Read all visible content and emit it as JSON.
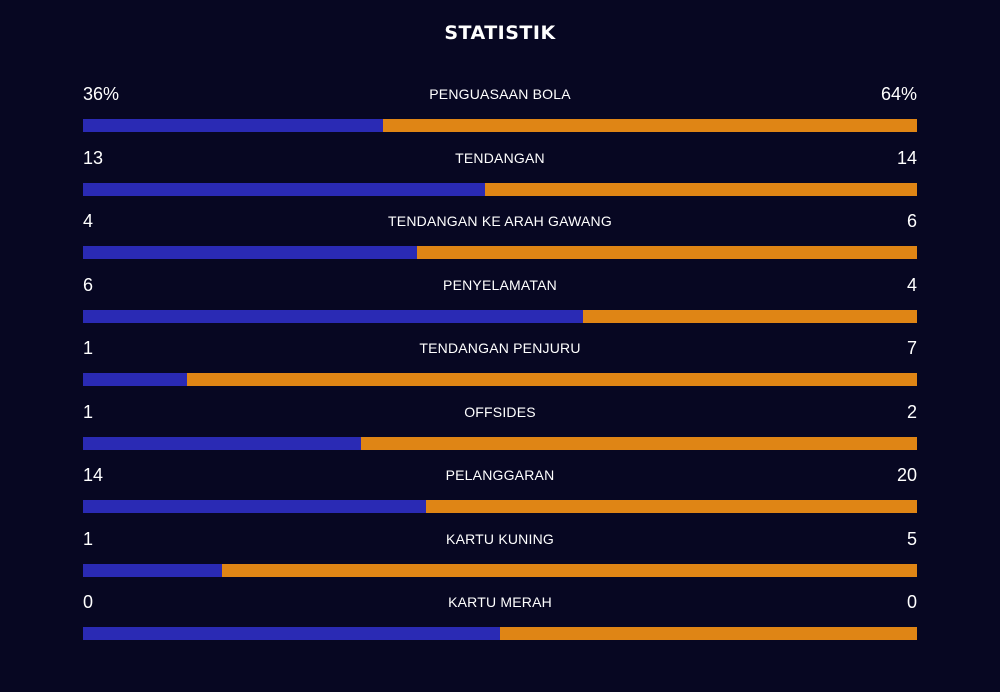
{
  "title": "STATISTIK",
  "colors": {
    "background": "#070722",
    "home": "#2a2ab4",
    "away": "#df8515"
  },
  "chart_data": {
    "type": "bar",
    "orientation": "horizontal-stacked-comparison",
    "stats": [
      {
        "label": "PENGUASAAN BOLA",
        "left": "36%",
        "right": "64%",
        "left_value": 36,
        "right_value": 64
      },
      {
        "label": "TENDANGAN",
        "left": "13",
        "right": "14",
        "left_value": 13,
        "right_value": 14
      },
      {
        "label": "TENDANGAN KE ARAH GAWANG",
        "left": "4",
        "right": "6",
        "left_value": 4,
        "right_value": 6
      },
      {
        "label": "PENYELAMATAN",
        "left": "6",
        "right": "4",
        "left_value": 6,
        "right_value": 4
      },
      {
        "label": "TENDANGAN PENJURU",
        "left": "1",
        "right": "7",
        "left_value": 1,
        "right_value": 7
      },
      {
        "label": "OFFSIDES",
        "left": "1",
        "right": "2",
        "left_value": 1,
        "right_value": 2
      },
      {
        "label": "PELANGGARAN",
        "left": "14",
        "right": "20",
        "left_value": 14,
        "right_value": 20
      },
      {
        "label": "KARTU KUNING",
        "left": "1",
        "right": "5",
        "left_value": 1,
        "right_value": 5
      },
      {
        "label": "KARTU MERAH",
        "left": "0",
        "right": "0",
        "left_value": 0,
        "right_value": 0
      }
    ]
  }
}
